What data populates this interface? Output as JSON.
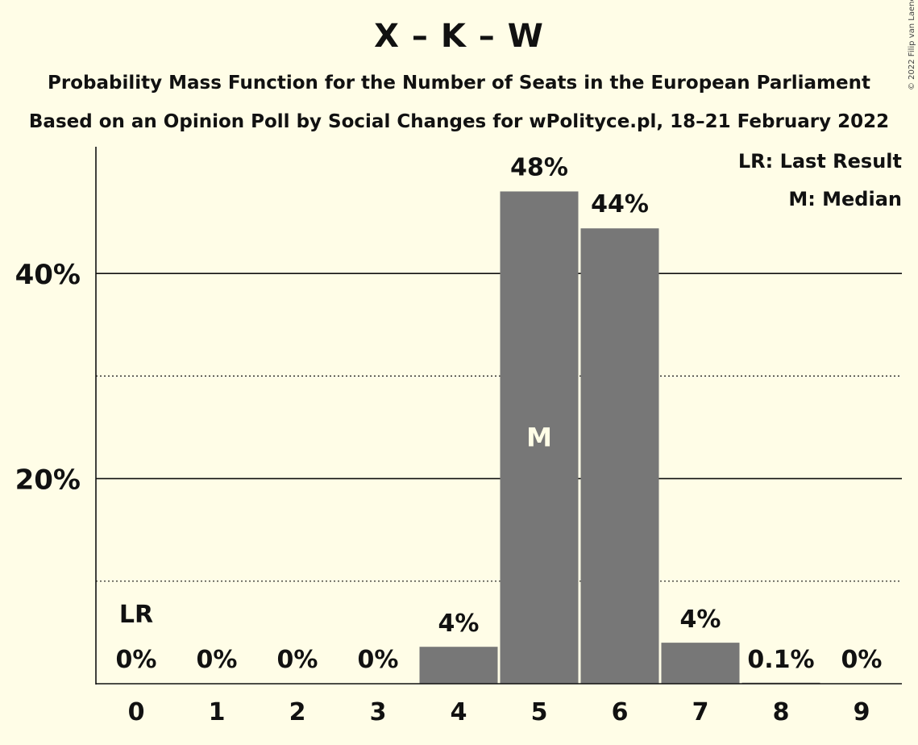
{
  "header": {
    "title": "X – K – W",
    "subtitle1": "Probability Mass Function for the Number of Seats in the European Parliament",
    "subtitle2": "Based on an Opinion Poll by Social Changes for wPolityce.pl, 18–21 February 2022",
    "copyright": "© 2022 Filip van Laenen"
  },
  "legend": {
    "last_result": "LR: Last Result",
    "median": "M: Median",
    "placement": "top-right"
  },
  "colors": {
    "background": "#fffde7",
    "bar": "#777777",
    "text": "#111111"
  },
  "chart_data": {
    "type": "bar",
    "categories": [
      "0",
      "1",
      "2",
      "3",
      "4",
      "5",
      "6",
      "7",
      "8",
      "9"
    ],
    "values": [
      0,
      0,
      0,
      0,
      3.6,
      48,
      44.4,
      4,
      0.1,
      0
    ],
    "data_labels": [
      "0%",
      "0%",
      "0%",
      "0%",
      "4%",
      "48%",
      "44%",
      "4%",
      "0.1%",
      "0%"
    ],
    "ylim": [
      0,
      52
    ],
    "yticks": [
      20,
      40
    ],
    "ytick_labels": [
      "20%",
      "40%"
    ],
    "minor_gridlines": [
      10,
      30
    ],
    "last_result_category": "0",
    "last_result_marker": "LR",
    "median_category": "5",
    "median_marker": "M",
    "xlabel": "",
    "ylabel": ""
  }
}
